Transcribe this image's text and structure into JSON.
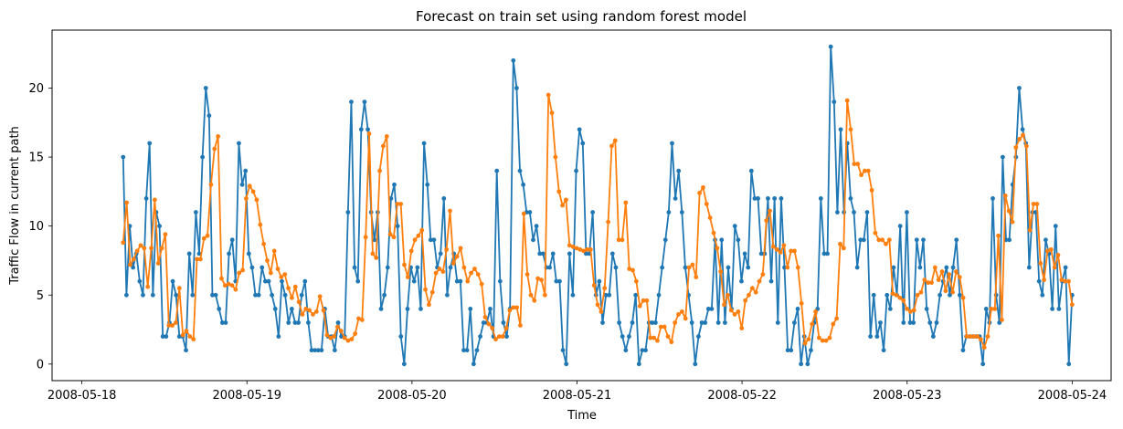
{
  "chart_data": {
    "type": "line",
    "title": "Forecast on train set using random forest model",
    "xlabel": "Time",
    "ylabel": "Traffic Flow in current path",
    "xlim": [
      "2008-05-17T19:40",
      "2008-05-24T05:40"
    ],
    "ylim": [
      -1.2,
      24.2
    ],
    "x_ticks": [
      "2008-05-18",
      "2008-05-19",
      "2008-05-20",
      "2008-05-21",
      "2008-05-22",
      "2008-05-23",
      "2008-05-24"
    ],
    "y_ticks": [
      0,
      5,
      10,
      15,
      20
    ],
    "grid": false,
    "x_start": "2008-05-18T06:00",
    "x_end": "2008-05-24T00:00",
    "series": [
      {
        "color": "#1f77b4",
        "marker": "circle",
        "values": [
          15,
          5,
          10,
          7,
          8,
          6,
          5,
          12,
          16,
          5,
          11,
          10,
          2,
          2,
          3,
          6,
          5,
          2,
          2,
          1,
          8,
          5,
          11,
          8,
          15,
          20,
          18,
          5,
          5,
          4,
          3,
          3,
          8,
          9,
          6,
          16,
          13,
          14,
          8,
          7,
          5,
          5,
          7,
          6,
          6,
          5,
          4,
          2,
          6,
          5,
          3,
          4,
          3,
          3,
          5,
          6,
          3,
          1,
          1,
          1,
          1,
          4,
          2,
          2,
          1,
          3,
          2,
          2,
          11,
          19,
          7,
          6,
          17,
          19,
          17,
          11,
          9,
          11,
          4,
          5,
          7,
          12,
          13,
          10,
          2,
          0,
          4,
          7,
          6,
          7,
          4,
          16,
          13,
          9,
          9,
          7,
          8,
          12,
          5,
          7,
          8,
          6,
          6,
          1,
          1,
          4,
          0,
          1,
          2,
          3,
          3,
          4,
          2,
          14,
          6,
          3,
          2,
          4,
          22,
          20,
          14,
          13,
          11,
          11,
          9,
          10,
          8,
          8,
          7,
          7,
          8,
          6,
          6,
          1,
          0,
          8,
          5,
          14,
          17,
          16,
          8,
          8,
          11,
          5,
          6,
          3,
          5,
          5,
          8,
          7,
          3,
          2,
          1,
          2,
          3,
          5,
          0,
          1,
          1,
          3,
          3,
          3,
          5,
          7,
          9,
          11,
          16,
          12,
          14,
          11,
          7,
          5,
          3,
          0,
          2,
          3,
          3,
          4,
          4,
          9,
          3,
          9,
          3,
          7,
          4,
          10,
          9,
          6,
          8,
          7,
          14,
          12,
          12,
          8,
          8,
          12,
          6,
          12,
          3,
          12,
          7,
          1,
          1,
          3,
          4,
          0,
          2,
          0,
          1,
          3,
          4,
          12,
          8,
          8,
          23,
          19,
          11,
          17,
          11,
          16,
          12,
          11,
          7,
          9,
          9,
          11,
          2,
          5,
          2,
          3,
          1,
          5,
          4,
          7,
          5,
          10,
          3,
          11,
          3,
          3,
          9,
          7,
          9,
          4,
          3,
          2,
          3,
          5,
          6,
          7,
          5,
          7,
          9,
          5,
          1,
          2,
          2,
          2,
          2,
          2,
          0,
          4,
          3,
          12,
          5,
          3,
          15,
          9,
          9,
          13,
          15,
          20,
          17,
          16,
          7,
          11,
          11,
          6,
          5,
          9,
          8,
          4,
          10,
          4,
          6,
          7,
          0,
          5
        ]
      },
      {
        "color": "#ff7f0e",
        "marker": "circle",
        "values": [
          8.8,
          11.7,
          7.2,
          7.6,
          8.2,
          8.6,
          8.4,
          5.6,
          8.4,
          11.9,
          7.3,
          8.4,
          9.4,
          2.8,
          2.8,
          3.0,
          5.5,
          2.1,
          2.4,
          2.0,
          1.8,
          7.6,
          7.6,
          9.1,
          9.3,
          13.0,
          15.6,
          16.5,
          6.2,
          5.7,
          5.8,
          5.7,
          5.4,
          6.6,
          6.8,
          12.0,
          12.9,
          12.5,
          11.9,
          10.1,
          8.7,
          7.5,
          6.6,
          8.2,
          6.9,
          6.3,
          6.5,
          5.5,
          4.8,
          5.6,
          4.5,
          3.6,
          4.0,
          3.9,
          3.6,
          3.8,
          4.9,
          3.9,
          2.1,
          1.9,
          2.0,
          2.7,
          2.4,
          1.9,
          1.7,
          1.8,
          2.2,
          3.3,
          3.2,
          9.2,
          16.7,
          8.0,
          7.7,
          14.0,
          15.8,
          16.5,
          9.4,
          9.2,
          11.6,
          11.6,
          7.2,
          6.3,
          8.2,
          9.0,
          9.3,
          9.7,
          5.4,
          4.3,
          5.2,
          6.6,
          6.9,
          6.7,
          8.3,
          11.1,
          7.3,
          7.8,
          8.4,
          7.0,
          6.0,
          6.6,
          6.9,
          6.5,
          5.8,
          3.4,
          2.9,
          2.6,
          1.8,
          2.0,
          2.0,
          2.6,
          3.9,
          4.1,
          4.1,
          2.8,
          10.9,
          6.5,
          5.0,
          4.6,
          6.2,
          6.1,
          5.0,
          19.5,
          18.2,
          15.0,
          12.5,
          11.5,
          11.9,
          8.6,
          8.5,
          8.4,
          8.3,
          8.2,
          8.3,
          8.3,
          5.7,
          4.3,
          3.8,
          5.5,
          10.3,
          15.8,
          16.2,
          9.0,
          9.0,
          11.7,
          6.9,
          6.8,
          6.0,
          4.2,
          4.6,
          4.6,
          1.9,
          1.9,
          1.7,
          2.7,
          2.7,
          2.0,
          1.6,
          3.0,
          3.6,
          3.8,
          3.3,
          7.0,
          7.2,
          6.3,
          12.4,
          12.8,
          11.6,
          10.6,
          9.5,
          8.4,
          6.7,
          4.3,
          5.0,
          3.9,
          3.6,
          3.8,
          2.6,
          4.6,
          5.0,
          5.5,
          5.2,
          6.0,
          6.5,
          10.4,
          11.1,
          8.5,
          8.3,
          8.1,
          8.6,
          7.0,
          8.2,
          8.2,
          7.0,
          4.4,
          1.5,
          1.8,
          2.9,
          3.8,
          1.9,
          1.7,
          1.7,
          1.9,
          2.9,
          3.3,
          8.7,
          8.4,
          19.1,
          17.0,
          14.5,
          14.5,
          13.7,
          14.0,
          14.0,
          12.6,
          9.5,
          9.0,
          9.0,
          8.7,
          9.0,
          5.1,
          5.0,
          4.8,
          4.6,
          4.0,
          3.8,
          3.9,
          5.0,
          5.2,
          6.1,
          5.9,
          5.9,
          7.0,
          6.1,
          6.7,
          5.3,
          6.5,
          5.2,
          6.7,
          6.3,
          4.8,
          2.0,
          2.0,
          2.0,
          2.0,
          1.8,
          1.2,
          2.0,
          4.0,
          4.0,
          9.3,
          3.2,
          12.2,
          11.1,
          10.3,
          15.7,
          16.3,
          16.6,
          15.8,
          9.7,
          11.6,
          11.6,
          7.3,
          6.1,
          8.2,
          8.3,
          7.0,
          7.9,
          6.1,
          6.0,
          6.0,
          4.3
        ]
      }
    ]
  }
}
